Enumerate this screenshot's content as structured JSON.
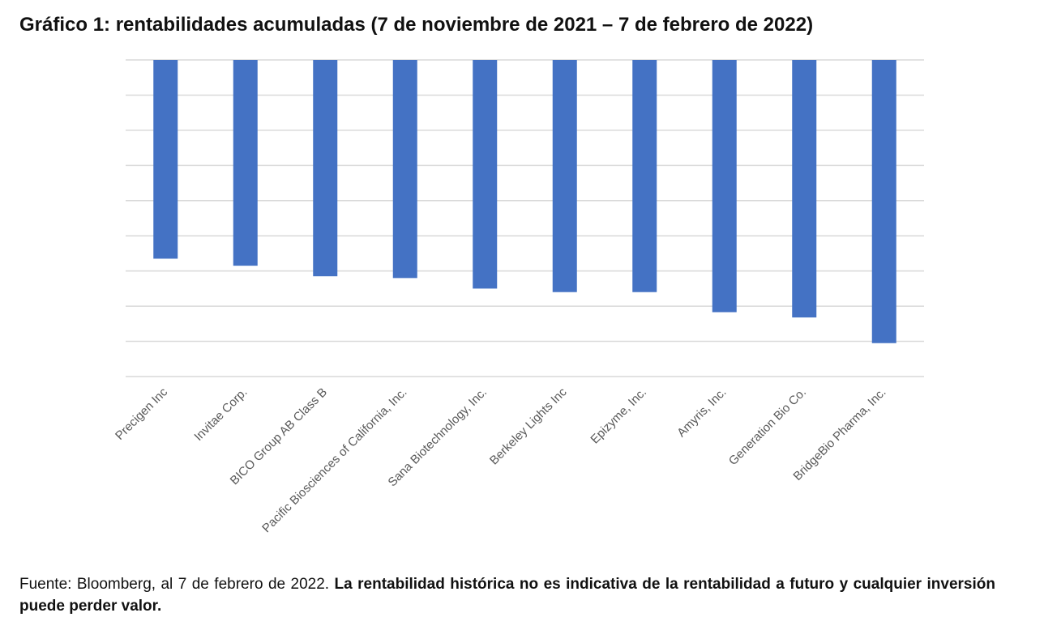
{
  "title": "Gráfico 1: rentabilidades acumuladas (7 de noviembre de 2021 – 7 de febrero de 2022)",
  "footer": {
    "source": "Fuente: Bloomberg, al 7 de febrero de 2022.",
    "disclaimer": "La rentabilidad histórica no es indicativa de la rentabilidad a futuro y cualquier inversión puede perder valor."
  },
  "chart_data": {
    "type": "bar",
    "title": "Gráfico 1: rentabilidades acumuladas (7 de noviembre de 2021 – 7 de febrero de 2022)",
    "xlabel": "",
    "ylabel": "",
    "y_tick_labels_visible": false,
    "grid": true,
    "ylim": [
      -9,
      0
    ],
    "yticks": [
      0,
      -1,
      -2,
      -3,
      -4,
      -5,
      -6,
      -7,
      -8,
      -9
    ],
    "categories": [
      "Precigen Inc",
      "Invitae Corp.",
      "BICO Group AB Class B",
      "Pacific Biosciences of California, Inc.",
      "Sana Biotechnology, Inc.",
      "Berkeley Lights Inc",
      "Epizyme, Inc.",
      "Amyris, Inc.",
      "Generation Bio Co.",
      "BridgeBio Pharma, Inc."
    ],
    "values": [
      -5.65,
      -5.85,
      -6.15,
      -6.2,
      -6.5,
      -6.6,
      -6.6,
      -7.17,
      -7.32,
      -8.05
    ],
    "bar_color": "#4472C4",
    "grid_color": "#D9D9D9"
  }
}
